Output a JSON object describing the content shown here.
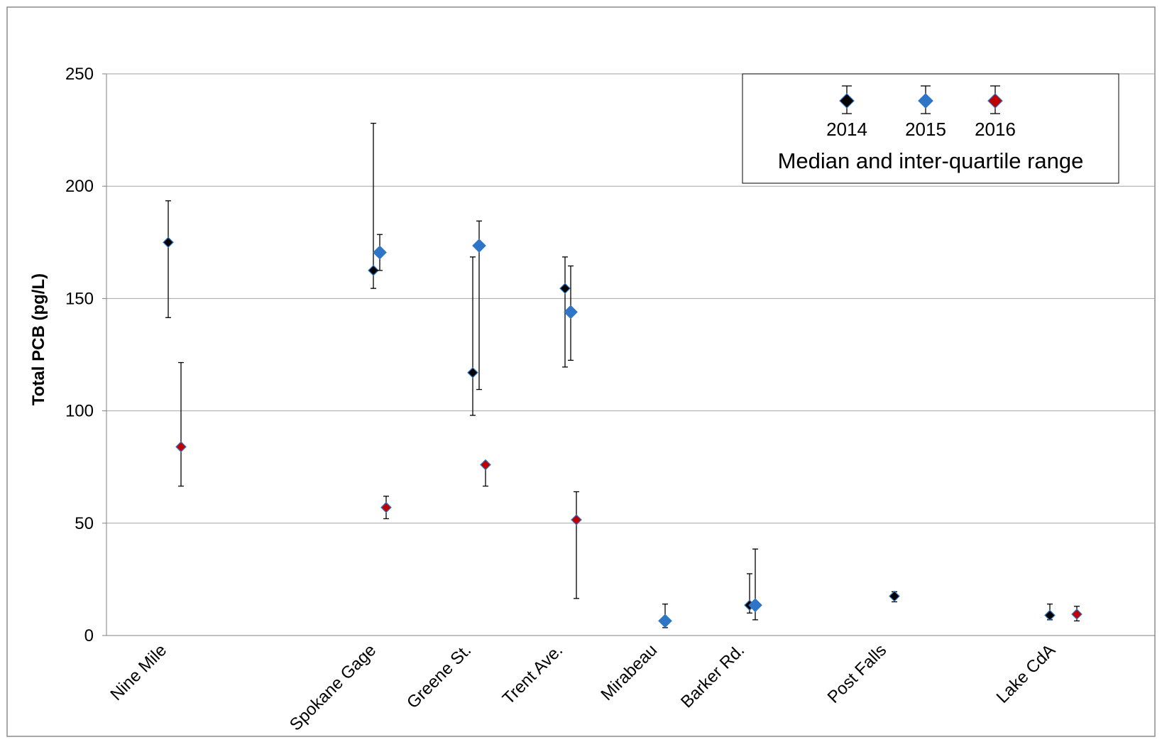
{
  "chart_data": {
    "type": "scatter",
    "title": "",
    "xlabel": "",
    "ylabel": "Total PCB (pg/L)",
    "ylim": [
      0,
      250
    ],
    "yticks": [
      0,
      50,
      100,
      150,
      200,
      250
    ],
    "grid": true,
    "legend_position": "top-right",
    "legend_caption": "Median and inter-quartile range",
    "categories": [
      "Nine Mile",
      "Spokane Gage",
      "Greene St.",
      "Trent Ave.",
      "Mirabeau",
      "Barker Rd.",
      "Post Falls",
      "Lake CdA"
    ],
    "series": [
      {
        "name": "2014",
        "color": "#000000",
        "points": [
          {
            "category": "Nine Mile",
            "median": 175,
            "q1": 141.5,
            "q3": 193.5
          },
          {
            "category": "Spokane Gage",
            "median": 162.5,
            "q1": 154.5,
            "q3": 228
          },
          {
            "category": "Greene St.",
            "median": 117,
            "q1": 98,
            "q3": 168.5
          },
          {
            "category": "Trent Ave.",
            "median": 154.5,
            "q1": 119.5,
            "q3": 168.5
          },
          {
            "category": "Barker Rd.",
            "median": 13.5,
            "q1": 10,
            "q3": 27.5
          },
          {
            "category": "Post Falls",
            "median": 17.5,
            "q1": 15,
            "q3": 19.5
          },
          {
            "category": "Lake CdA",
            "median": 9,
            "q1": 7,
            "q3": 14
          }
        ]
      },
      {
        "name": "2015",
        "color": "#2e75c7",
        "points": [
          {
            "category": "Spokane Gage",
            "median": 170.5,
            "q1": 162.5,
            "q3": 178.5
          },
          {
            "category": "Greene St.",
            "median": 173.5,
            "q1": 109.5,
            "q3": 184.5
          },
          {
            "category": "Trent Ave.",
            "median": 144,
            "q1": 122.5,
            "q3": 164.5
          },
          {
            "category": "Mirabeau",
            "median": 6.5,
            "q1": 3.5,
            "q3": 14
          },
          {
            "category": "Barker Rd.",
            "median": 13.5,
            "q1": 7,
            "q3": 38.5
          }
        ]
      },
      {
        "name": "2016",
        "color": "#c00000",
        "points": [
          {
            "category": "Nine Mile",
            "median": 84,
            "q1": 66.5,
            "q3": 121.5
          },
          {
            "category": "Spokane Gage",
            "median": 57,
            "q1": 52,
            "q3": 62
          },
          {
            "category": "Greene St.",
            "median": 76,
            "q1": 66.5,
            "q3": 76.5
          },
          {
            "category": "Trent Ave.",
            "median": 51.5,
            "q1": 16.5,
            "q3": 64
          },
          {
            "category": "Lake CdA",
            "median": 9.5,
            "q1": 6.5,
            "q3": 13
          }
        ]
      }
    ]
  }
}
